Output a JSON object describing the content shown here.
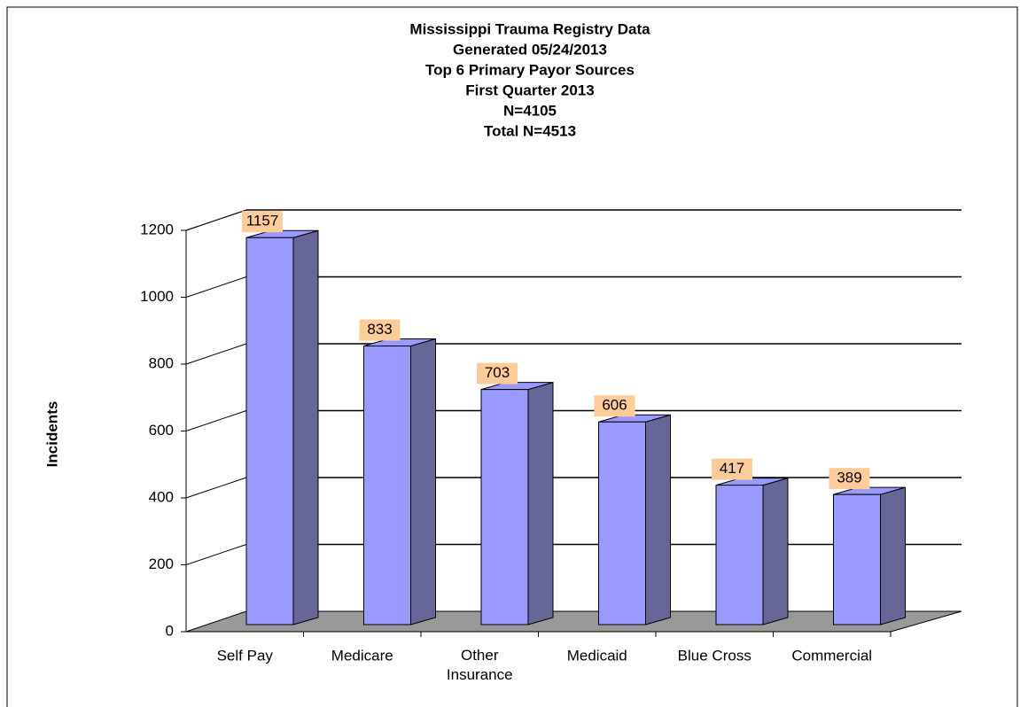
{
  "chart_data": {
    "type": "bar3d",
    "title": [
      "Mississippi Trauma Registry Data",
      "Generated 05/24/2013",
      "Top 6 Primary Payor Sources",
      "First Quarter 2013",
      "N=4105",
      "Total N=4513"
    ],
    "y_label": "Incidents",
    "categories": [
      "Self Pay",
      "Medicare",
      "Other Insurance",
      "Medicaid",
      "Blue Cross",
      "Commercial"
    ],
    "values": [
      1157,
      833,
      703,
      606,
      417,
      389
    ],
    "color": "#9999ff",
    "side_color": "#666699",
    "label_box_color": "#ffcc99",
    "ylim": [
      0,
      1200
    ],
    "yticks": [
      0,
      200,
      400,
      600,
      800,
      1000,
      1200
    ],
    "grid": true
  }
}
